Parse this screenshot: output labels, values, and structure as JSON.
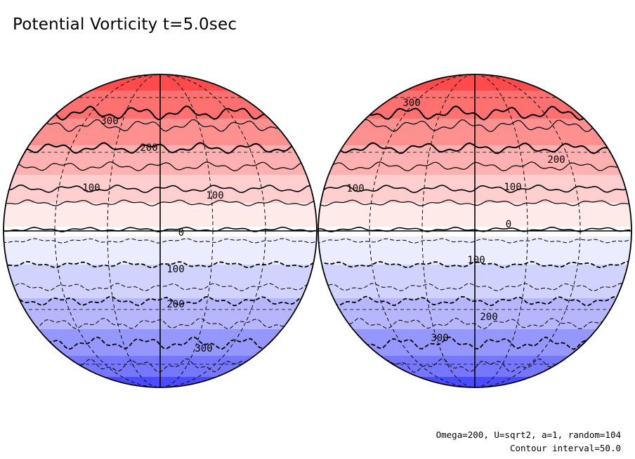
{
  "title": "Potential Vorticity t=5.0sec",
  "footer": {
    "params": "Omega=200, U=sqrt2, a=1, random=104",
    "contour_interval": "Contour interval=50.0"
  },
  "colors": {
    "positive_band_colors": [
      "#ffeaea",
      "#ffcfcf",
      "#ffb0b0",
      "#ff9090",
      "#ff7070",
      "#ff4b4b"
    ],
    "negative_band_colors": [
      "#ececff",
      "#d2d2ff",
      "#b6b6ff",
      "#9696ff",
      "#7676ff",
      "#4b4bff"
    ],
    "contour": "#000000"
  },
  "hemispheres": [
    {
      "name": "left",
      "labels": [
        "300",
        "200",
        "100",
        "100",
        "0",
        "100",
        "200",
        "300"
      ]
    },
    {
      "name": "right",
      "labels": [
        "300",
        "200",
        "100",
        "100",
        "0",
        "100",
        "200",
        "300"
      ]
    }
  ]
}
